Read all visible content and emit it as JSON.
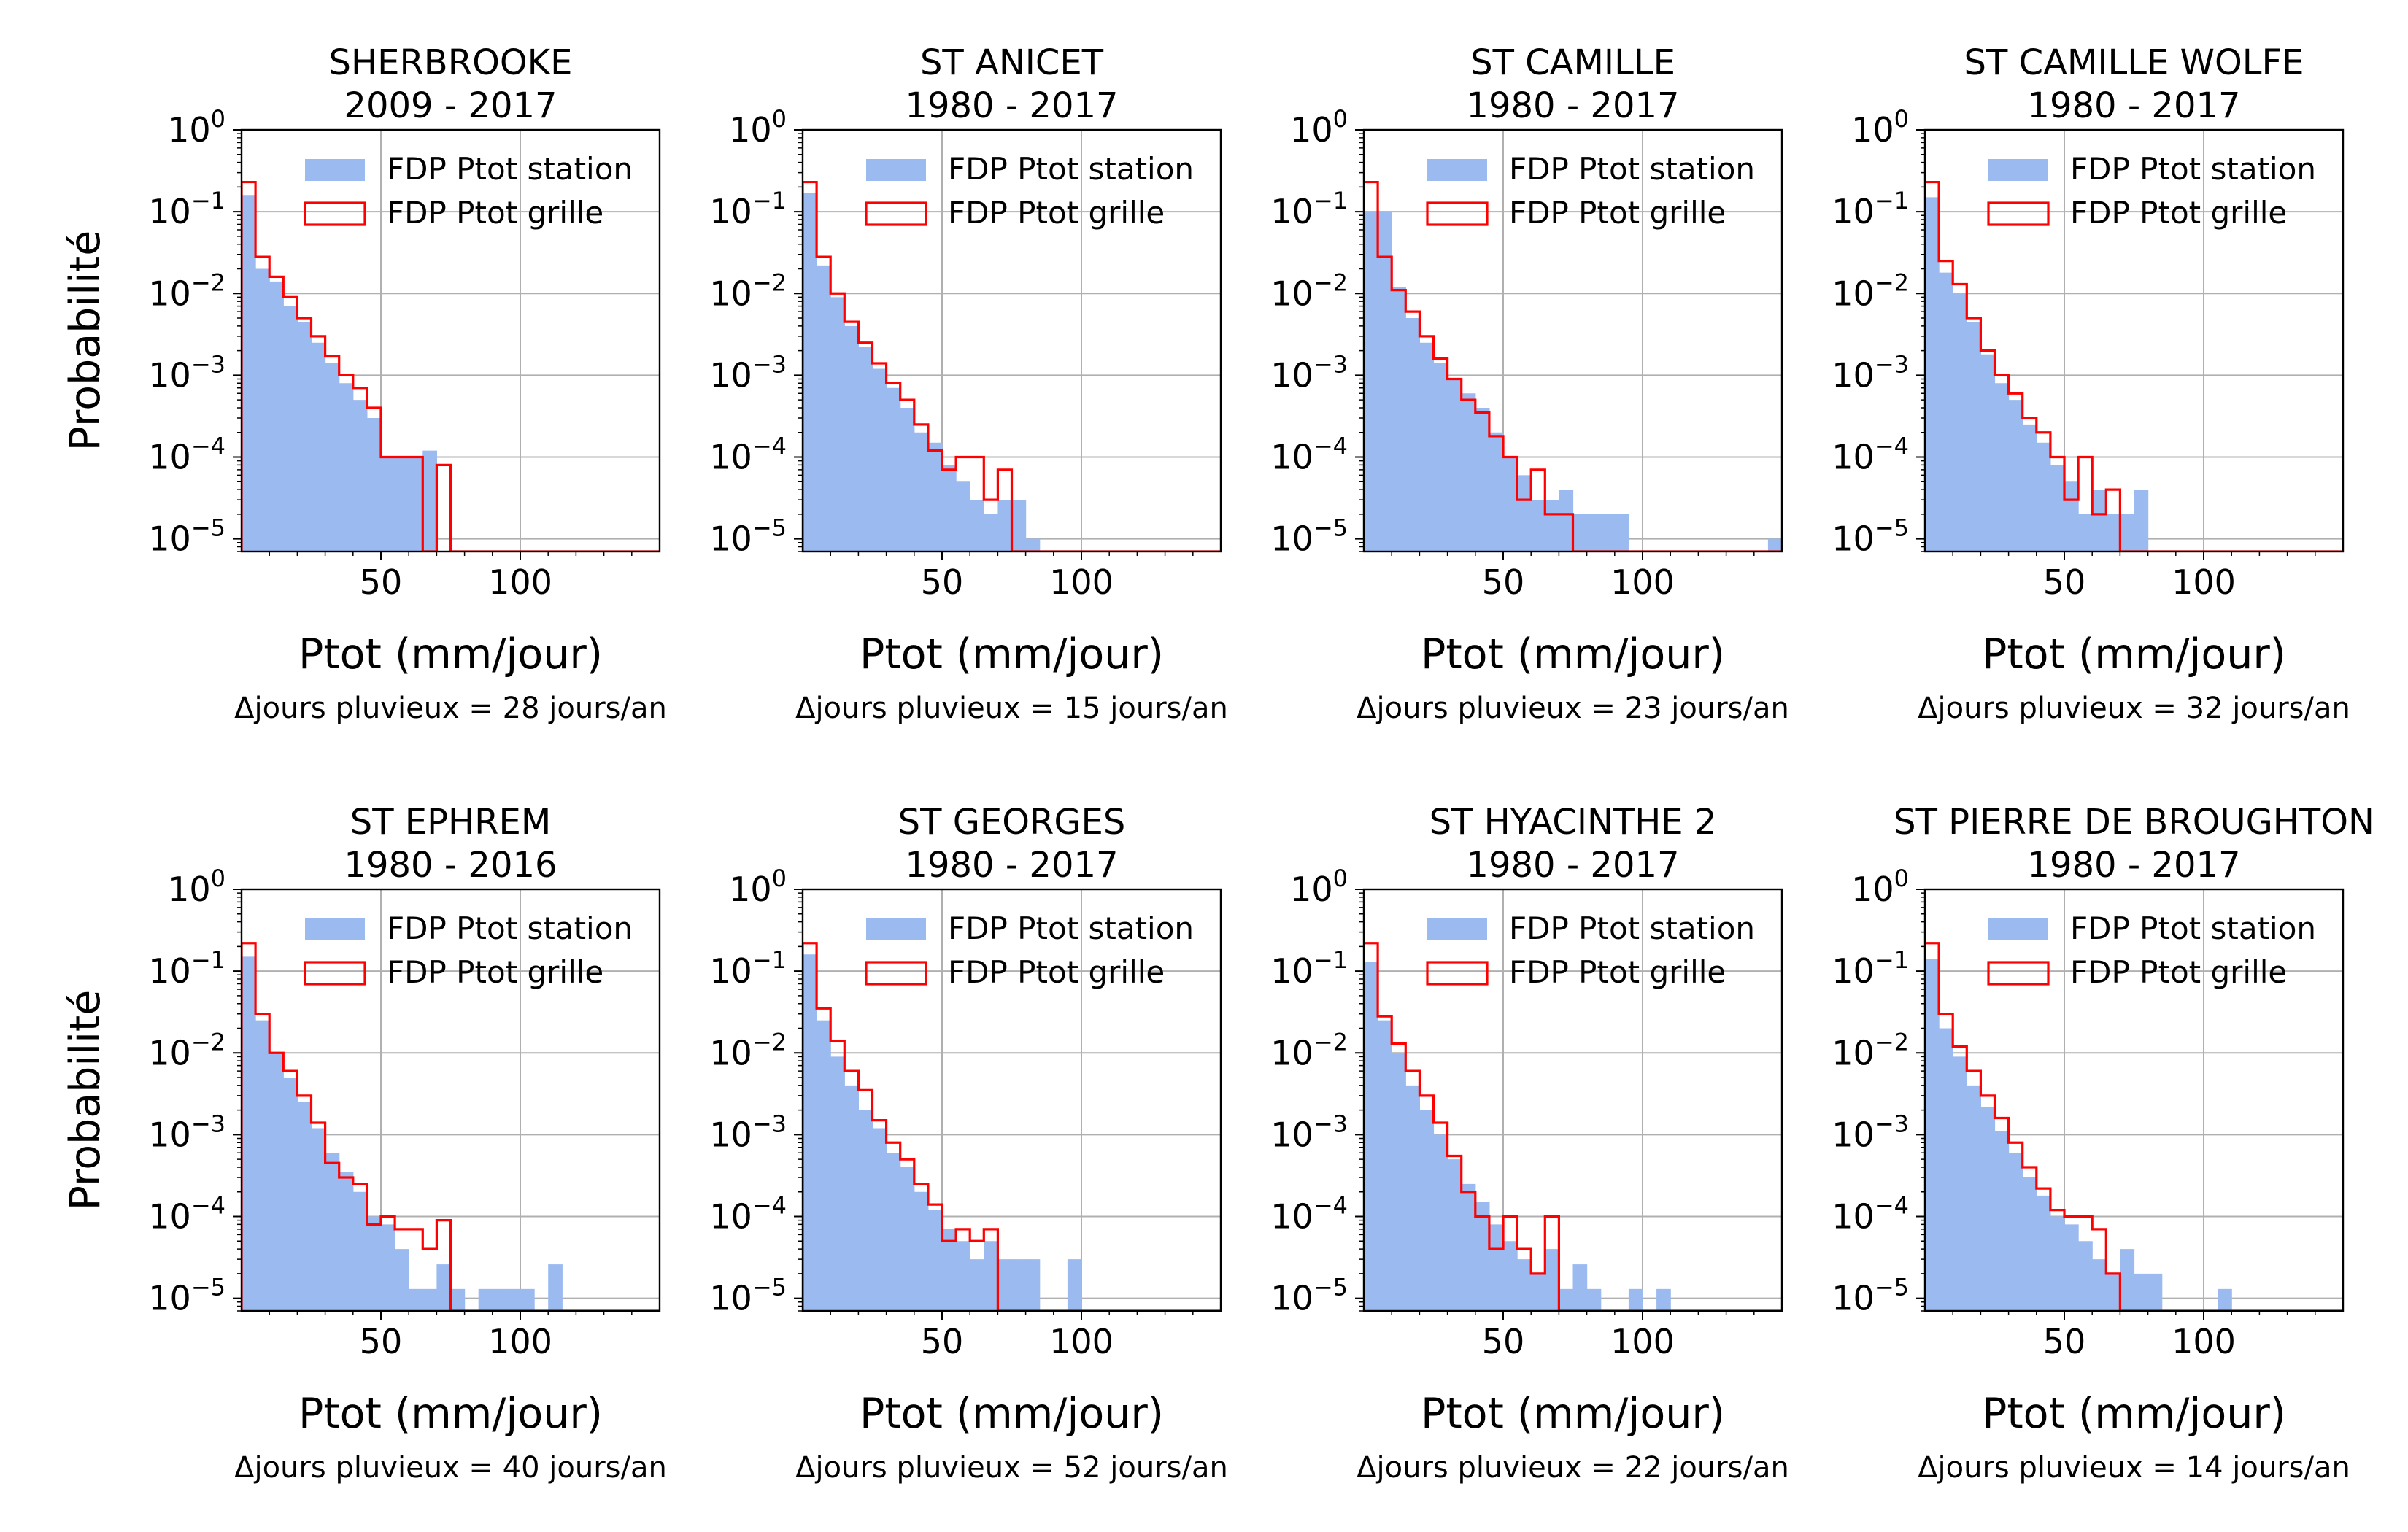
{
  "figure": {
    "ylabel": "Probabilité",
    "xlabel": "Ptot (mm/jour)",
    "legend": {
      "station_label": "FDP Ptot station",
      "grille_label": "FDP Ptot grille"
    },
    "colors": {
      "station": "#9bbaf0",
      "grille": "#ff0000",
      "grid": "#b0b0b0",
      "axis": "#000000"
    }
  },
  "chart_data": [
    {
      "type": "histogram",
      "title_line1": "SHERBROOKE",
      "title_line2": "2009 - 2017",
      "note": "Δjours pluvieux = 28 jours/an",
      "xlabel": "Ptot (mm/jour)",
      "ylabel": "Probabilité",
      "xlim": [
        0,
        150
      ],
      "ylim": [
        7e-06,
        1
      ],
      "yscale": "log",
      "xticks": [
        50,
        100
      ],
      "yticks": [
        1e-05,
        0.0001,
        0.001,
        0.01,
        0.1,
        1
      ],
      "grid": true,
      "legend_loc": "upper right",
      "bin_width": 5,
      "series": [
        {
          "name": "FDP Ptot station",
          "style": "filled",
          "values": [
            0.16,
            0.02,
            0.014,
            0.007,
            0.0045,
            0.0025,
            0.0014,
            0.0008,
            0.0005,
            0.0003,
            0.0001,
            0.0001,
            0.0001,
            0.00012,
            0,
            0,
            0,
            0,
            0,
            0,
            0,
            0,
            0,
            0,
            0,
            0,
            0,
            0,
            0,
            0
          ]
        },
        {
          "name": "FDP Ptot grille",
          "style": "step",
          "values": [
            0.23,
            0.028,
            0.016,
            0.009,
            0.005,
            0.003,
            0.0017,
            0.001,
            0.0007,
            0.0004,
            0.0001,
            0.0001,
            0.0001,
            0,
            8e-05,
            0,
            0,
            0,
            0,
            0,
            0,
            0,
            0,
            0,
            0,
            0,
            0,
            0,
            0,
            0
          ]
        }
      ]
    },
    {
      "type": "histogram",
      "title_line1": "ST ANICET",
      "title_line2": "1980 - 2017",
      "note": "Δjours pluvieux = 15 jours/an",
      "xlabel": "Ptot (mm/jour)",
      "ylabel": "Probabilité",
      "xlim": [
        0,
        150
      ],
      "ylim": [
        7e-06,
        1
      ],
      "yscale": "log",
      "xticks": [
        50,
        100
      ],
      "yticks": [
        1e-05,
        0.0001,
        0.001,
        0.01,
        0.1,
        1
      ],
      "grid": true,
      "legend_loc": "upper right",
      "bin_width": 5,
      "series": [
        {
          "name": "FDP Ptot station",
          "style": "filled",
          "values": [
            0.17,
            0.022,
            0.009,
            0.004,
            0.0022,
            0.0012,
            0.0007,
            0.0004,
            0.0002,
            0.00015,
            8e-05,
            5e-05,
            3e-05,
            2e-05,
            3e-05,
            3e-05,
            1e-05,
            0,
            0,
            0,
            0,
            0,
            0,
            0,
            0,
            0,
            0,
            0,
            0,
            0
          ]
        },
        {
          "name": "FDP Ptot grille",
          "style": "step",
          "values": [
            0.23,
            0.028,
            0.01,
            0.0045,
            0.0025,
            0.0014,
            0.0008,
            0.0005,
            0.00025,
            0.00012,
            7e-05,
            0.0001,
            0.0001,
            3e-05,
            7e-05,
            0,
            0,
            0,
            0,
            0,
            0,
            0,
            0,
            0,
            0,
            0,
            0,
            0,
            0,
            0
          ]
        }
      ]
    },
    {
      "type": "histogram",
      "title_line1": "ST CAMILLE",
      "title_line2": "1980 - 2017",
      "note": "Δjours pluvieux = 23 jours/an",
      "xlabel": "Ptot (mm/jour)",
      "ylabel": "Probabilité",
      "xlim": [
        0,
        150
      ],
      "ylim": [
        7e-06,
        1
      ],
      "yscale": "log",
      "xticks": [
        50,
        100
      ],
      "yticks": [
        1e-05,
        0.0001,
        0.001,
        0.01,
        0.1,
        1
      ],
      "grid": true,
      "legend_loc": "upper right",
      "bin_width": 5,
      "series": [
        {
          "name": "FDP Ptot station",
          "style": "filled",
          "values": [
            0.1,
            0.1,
            0.012,
            0.005,
            0.0025,
            0.0014,
            0.0009,
            0.0006,
            0.0004,
            0.0002,
            0.0001,
            6e-05,
            3e-05,
            3e-05,
            4e-05,
            2e-05,
            2e-05,
            2e-05,
            2e-05,
            0,
            0,
            0,
            0,
            0,
            0,
            0,
            0,
            0,
            0,
            1e-05
          ]
        },
        {
          "name": "FDP Ptot grille",
          "style": "step",
          "values": [
            0.23,
            0.028,
            0.011,
            0.006,
            0.003,
            0.0016,
            0.0009,
            0.0005,
            0.00035,
            0.00018,
            0.0001,
            3e-05,
            7e-05,
            2e-05,
            2e-05,
            0,
            0,
            0,
            0,
            0,
            0,
            0,
            0,
            0,
            0,
            0,
            0,
            0,
            0,
            0
          ]
        }
      ]
    },
    {
      "type": "histogram",
      "title_line1": "ST CAMILLE WOLFE",
      "title_line2": "1980 - 2017",
      "note": "Δjours pluvieux = 32 jours/an",
      "xlabel": "Ptot (mm/jour)",
      "ylabel": "Probabilité",
      "xlim": [
        0,
        150
      ],
      "ylim": [
        7e-06,
        1
      ],
      "yscale": "log",
      "xticks": [
        50,
        100
      ],
      "yticks": [
        1e-05,
        0.0001,
        0.001,
        0.01,
        0.1,
        1
      ],
      "grid": true,
      "legend_loc": "upper right",
      "bin_width": 5,
      "series": [
        {
          "name": "FDP Ptot station",
          "style": "filled",
          "values": [
            0.15,
            0.018,
            0.01,
            0.0045,
            0.0018,
            0.0008,
            0.0005,
            0.00025,
            0.00015,
            8e-05,
            5e-05,
            2e-05,
            4e-05,
            2e-05,
            2e-05,
            4e-05,
            0,
            0,
            0,
            0,
            0,
            0,
            0,
            0,
            0,
            0,
            0,
            0,
            0,
            0
          ]
        },
        {
          "name": "FDP Ptot grille",
          "style": "step",
          "values": [
            0.23,
            0.025,
            0.013,
            0.005,
            0.002,
            0.001,
            0.0006,
            0.0003,
            0.0002,
            0.0001,
            3e-05,
            0.0001,
            2e-05,
            4e-05,
            0,
            0,
            0,
            0,
            0,
            0,
            0,
            0,
            0,
            0,
            0,
            0,
            0,
            0,
            0,
            0
          ]
        }
      ]
    },
    {
      "type": "histogram",
      "title_line1": "ST EPHREM",
      "title_line2": "1980 - 2016",
      "note": "Δjours pluvieux = 40 jours/an",
      "xlabel": "Ptot (mm/jour)",
      "ylabel": "Probabilité",
      "xlim": [
        0,
        150
      ],
      "ylim": [
        7e-06,
        1
      ],
      "yscale": "log",
      "xticks": [
        50,
        100
      ],
      "yticks": [
        1e-05,
        0.0001,
        0.001,
        0.01,
        0.1,
        1
      ],
      "grid": true,
      "legend_loc": "upper right",
      "bin_width": 5,
      "series": [
        {
          "name": "FDP Ptot station",
          "style": "filled",
          "values": [
            0.15,
            0.025,
            0.01,
            0.005,
            0.0025,
            0.0012,
            0.0006,
            0.00035,
            0.0002,
            0.0001,
            8e-05,
            4e-05,
            1.3e-05,
            1.3e-05,
            2.6e-05,
            1.3e-05,
            0,
            1.3e-05,
            1.3e-05,
            1.3e-05,
            1.3e-05,
            0,
            2.6e-05,
            0,
            0,
            0,
            0,
            0,
            0,
            0
          ]
        },
        {
          "name": "FDP Ptot grille",
          "style": "step",
          "values": [
            0.22,
            0.03,
            0.01,
            0.006,
            0.003,
            0.0014,
            0.00045,
            0.0003,
            0.00025,
            8e-05,
            0.0001,
            7e-05,
            7e-05,
            4e-05,
            9e-05,
            0,
            0,
            0,
            0,
            0,
            0,
            0,
            0,
            0,
            0,
            0,
            0,
            0,
            0,
            0
          ]
        }
      ]
    },
    {
      "type": "histogram",
      "title_line1": "ST GEORGES",
      "title_line2": "1980 - 2017",
      "note": "Δjours pluvieux = 52 jours/an",
      "xlabel": "Ptot (mm/jour)",
      "ylabel": "Probabilité",
      "xlim": [
        0,
        150
      ],
      "ylim": [
        7e-06,
        1
      ],
      "yscale": "log",
      "xticks": [
        50,
        100
      ],
      "yticks": [
        1e-05,
        0.0001,
        0.001,
        0.01,
        0.1,
        1
      ],
      "grid": true,
      "legend_loc": "upper right",
      "bin_width": 5,
      "series": [
        {
          "name": "FDP Ptot station",
          "style": "filled",
          "values": [
            0.16,
            0.025,
            0.009,
            0.004,
            0.002,
            0.0012,
            0.0006,
            0.0004,
            0.0002,
            0.00012,
            7e-05,
            5e-05,
            3e-05,
            5e-05,
            3e-05,
            3e-05,
            3e-05,
            0,
            0,
            3e-05,
            0,
            0,
            0,
            0,
            0,
            0,
            0,
            0,
            0,
            0
          ]
        },
        {
          "name": "FDP Ptot grille",
          "style": "step",
          "values": [
            0.22,
            0.035,
            0.014,
            0.006,
            0.0035,
            0.0015,
            0.0008,
            0.0005,
            0.00025,
            0.00014,
            5e-05,
            7e-05,
            5e-05,
            7e-05,
            0,
            0,
            0,
            0,
            0,
            0,
            0,
            0,
            0,
            0,
            0,
            0,
            0,
            0,
            0,
            0
          ]
        }
      ]
    },
    {
      "type": "histogram",
      "title_line1": "ST HYACINTHE 2",
      "title_line2": "1980 - 2017",
      "note": "Δjours pluvieux = 22 jours/an",
      "xlabel": "Ptot (mm/jour)",
      "ylabel": "Probabilité",
      "xlim": [
        0,
        150
      ],
      "ylim": [
        7e-06,
        1
      ],
      "yscale": "log",
      "xticks": [
        50,
        100
      ],
      "yticks": [
        1e-05,
        0.0001,
        0.001,
        0.01,
        0.1,
        1
      ],
      "grid": true,
      "legend_loc": "upper right",
      "bin_width": 5,
      "series": [
        {
          "name": "FDP Ptot station",
          "style": "filled",
          "values": [
            0.13,
            0.025,
            0.01,
            0.004,
            0.002,
            0.001,
            0.0005,
            0.00025,
            0.00015,
            8e-05,
            5e-05,
            3e-05,
            2e-05,
            4e-05,
            1.3e-05,
            2.6e-05,
            1.3e-05,
            0,
            0,
            1.3e-05,
            0,
            1.3e-05,
            0,
            0,
            0,
            0,
            0,
            0,
            0,
            0
          ]
        },
        {
          "name": "FDP Ptot grille",
          "style": "step",
          "values": [
            0.22,
            0.028,
            0.013,
            0.006,
            0.003,
            0.0014,
            0.00055,
            0.0002,
            0.0001,
            4e-05,
            0.0001,
            4e-05,
            2e-05,
            0.0001,
            0,
            0,
            0,
            0,
            0,
            0,
            0,
            0,
            0,
            0,
            0,
            0,
            0,
            0,
            0,
            0
          ]
        }
      ]
    },
    {
      "type": "histogram",
      "title_line1": "ST PIERRE DE BROUGHTON",
      "title_line2": "1980 - 2017",
      "note": "Δjours pluvieux = 14 jours/an",
      "xlabel": "Ptot (mm/jour)",
      "ylabel": "Probabilité",
      "xlim": [
        0,
        150
      ],
      "ylim": [
        7e-06,
        1
      ],
      "yscale": "log",
      "xticks": [
        50,
        100
      ],
      "yticks": [
        1e-05,
        0.0001,
        0.001,
        0.01,
        0.1,
        1
      ],
      "grid": true,
      "legend_loc": "upper right",
      "bin_width": 5,
      "series": [
        {
          "name": "FDP Ptot station",
          "style": "filled",
          "values": [
            0.14,
            0.02,
            0.009,
            0.004,
            0.0022,
            0.0011,
            0.0006,
            0.0003,
            0.00018,
            0.0001,
            8e-05,
            5e-05,
            3e-05,
            2e-05,
            4e-05,
            2e-05,
            2e-05,
            0,
            0,
            0,
            0,
            1.3e-05,
            0,
            0,
            0,
            0,
            0,
            0,
            0,
            0
          ]
        },
        {
          "name": "FDP Ptot grille",
          "style": "step",
          "values": [
            0.22,
            0.03,
            0.012,
            0.006,
            0.003,
            0.0016,
            0.0008,
            0.0004,
            0.00022,
            0.00012,
            0.0001,
            0.0001,
            7e-05,
            2e-05,
            0,
            0,
            0,
            0,
            0,
            0,
            0,
            0,
            0,
            0,
            0,
            0,
            0,
            0,
            0,
            0
          ]
        }
      ]
    }
  ]
}
